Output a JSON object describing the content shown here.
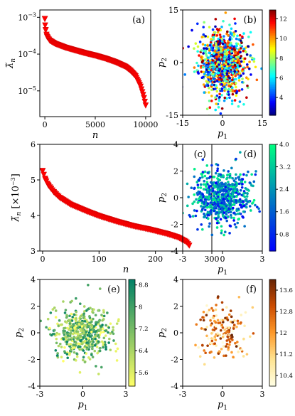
{
  "chart_data": [
    {
      "panel": "a",
      "type": "line",
      "label": "(a)",
      "marker": "triangle-down",
      "color": "#ff0000",
      "xlabel": "n",
      "ylabel": "λ̃n",
      "yscale": "log",
      "xlim": [
        -500,
        10500
      ],
      "ylim_log10": [
        -5.7,
        -2.8
      ],
      "xticks": [
        0,
        5000,
        10000
      ],
      "xtick_labels": [
        "0",
        "5000",
        "10000"
      ],
      "yticks_log10": [
        -5,
        -4,
        -3
      ],
      "ytick_labels": [
        "10-5",
        "10-4",
        "10-3"
      ],
      "x": [
        0,
        30,
        80,
        200,
        500,
        1000,
        2000,
        3000,
        4000,
        5000,
        6000,
        7000,
        8000,
        8500,
        9000,
        9500,
        9800,
        10000
      ],
      "y": [
        0.0009,
        0.0006,
        0.00045,
        0.0003,
        0.00023,
        0.00019,
        0.00015,
        0.000125,
        0.000105,
        9e-05,
        7.5e-05,
        6e-05,
        4.5e-05,
        3.5e-05,
        2.5e-05,
        1.3e-05,
        7e-06,
        4e-06
      ]
    },
    {
      "panel": "b",
      "type": "scatter",
      "label": "(b)",
      "colormap": "jet",
      "xlabel": "p1",
      "ylabel": "p2",
      "xlim": [
        -15,
        15
      ],
      "ylim": [
        -15,
        15
      ],
      "xticks": [
        -15,
        0,
        15
      ],
      "yticks": [
        -15,
        0,
        15
      ],
      "colorbar": {
        "min": 2.2,
        "max": 12.9,
        "ticks": [
          4,
          6,
          8,
          10,
          12
        ]
      },
      "n_points": 1000,
      "spread": 4.5
    },
    {
      "panel": "c",
      "type": "line",
      "label": "(c)",
      "marker": "triangle-down",
      "color": "#ff0000",
      "xlabel": "n",
      "ylabel": "λ̃n [×10−3]",
      "xlim": [
        -5,
        300
      ],
      "ylim": [
        3,
        6
      ],
      "xticks": [
        0,
        100,
        200,
        300
      ],
      "yticks": [
        3,
        4,
        5,
        6
      ],
      "x": [
        0,
        5,
        10,
        15,
        20,
        30,
        50,
        80,
        100,
        130,
        160,
        190,
        220,
        240,
        255,
        260
      ],
      "y": [
        5.25,
        5.0,
        4.85,
        4.75,
        4.65,
        4.5,
        4.3,
        4.1,
        3.98,
        3.83,
        3.7,
        3.6,
        3.48,
        3.38,
        3.25,
        3.15
      ]
    },
    {
      "panel": "d",
      "type": "scatter",
      "label": "(d)",
      "colormap": "winter",
      "xlabel": "p1",
      "ylabel": "p2",
      "xlim": [
        -3,
        3
      ],
      "ylim": [
        -4,
        4
      ],
      "xticks": [
        -3,
        0,
        3
      ],
      "yticks": [
        -4,
        -2,
        0,
        2,
        4
      ],
      "colorbar": {
        "min": 0.2,
        "max": 4.0,
        "ticks": [
          0.8,
          1.6,
          2.4,
          3.2,
          4.0
        ],
        "tick_labels": [
          "0.8",
          "1.6",
          "2.4",
          "3..2",
          "4.0"
        ]
      },
      "n_points": 700,
      "spread": 1.0
    },
    {
      "panel": "e",
      "type": "scatter",
      "label": "(e)",
      "colormap": "summer_r",
      "xlabel": "p1",
      "ylabel": "p2",
      "xlim": [
        -3,
        3
      ],
      "ylim": [
        -4,
        4
      ],
      "xticks": [
        -3,
        0,
        3
      ],
      "yticks": [
        -4,
        -2,
        0,
        2,
        4
      ],
      "colorbar": {
        "min": 5.1,
        "max": 9.0,
        "ticks": [
          5.6,
          6.4,
          7.2,
          8.0,
          8.8
        ]
      },
      "n_points": 500,
      "spread": 1.0
    },
    {
      "panel": "f",
      "type": "scatter",
      "label": "(f)",
      "colormap": "YlOrBr",
      "xlabel": "p1",
      "ylabel": "p2",
      "xlim": [
        -3,
        3
      ],
      "ylim": [
        -4,
        4
      ],
      "xticks": [
        -3,
        0,
        3
      ],
      "yticks": [
        -4,
        -2,
        0,
        2,
        4
      ],
      "colorbar": {
        "min": 10.0,
        "max": 14.0,
        "ticks": [
          10.4,
          11.2,
          12.0,
          12.8,
          13.6
        ]
      },
      "n_points": 170,
      "spread": 1.0
    }
  ]
}
